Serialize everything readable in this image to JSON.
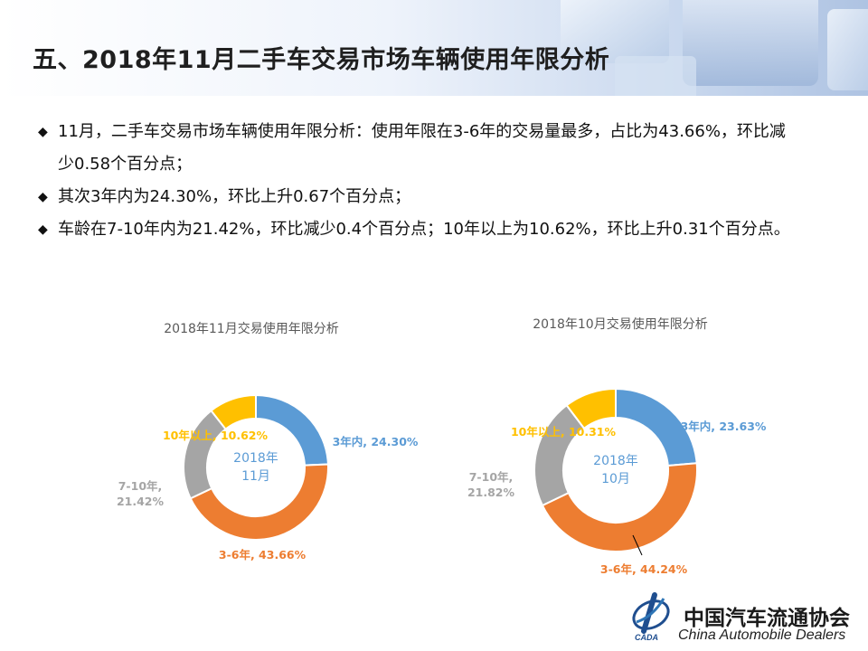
{
  "page": {
    "title": "五、2018年11月二手车交易市场车辆使用年限分析"
  },
  "bullets": [
    "11月，二手车交易市场车辆使用年限分析：使用年限在3-6年的交易量最多，占比为43.66%，环比减少0.58个百分点；",
    "其次3年内为24.30%，环比上升0.67个百分点；",
    "车龄在7-10年内为21.42%，环比减少0.4个百分点；10年以上为10.62%，环比上升0.31个百分点。"
  ],
  "colors": {
    "within3": "#5b9bd5",
    "y3to6": "#ed7d31",
    "y7to10": "#a5a5a5",
    "over10": "#ffc000",
    "title_text": "#595959"
  },
  "chart_data": [
    {
      "type": "pie",
      "donut": true,
      "title": "2018年11月交易使用年限分析",
      "center_label": [
        "2018年",
        "11月"
      ],
      "categories": [
        "3年内",
        "3-6年",
        "7-10年",
        "10年以上"
      ],
      "values": [
        24.3,
        43.66,
        21.42,
        10.62
      ],
      "labels": [
        "3年内, 24.30%",
        "3-6年, 43.66%",
        "7-10年, 21.42%",
        "10年以上, 10.62%"
      ]
    },
    {
      "type": "pie",
      "donut": true,
      "title": "2018年10月交易使用年限分析",
      "center_label": [
        "2018年",
        "10月"
      ],
      "categories": [
        "3年内",
        "3-6年",
        "7-10年",
        "10年以上"
      ],
      "values": [
        23.63,
        44.24,
        21.82,
        10.31
      ],
      "labels": [
        "3年内, 23.63%",
        "3-6年, 44.24%",
        "7-10年, 21.82%",
        "10年以上, 10.31%"
      ]
    }
  ],
  "logo": {
    "cn": "中国汽车流通协会",
    "en": "China Automobile Dealers",
    "abbr": "CADA"
  }
}
